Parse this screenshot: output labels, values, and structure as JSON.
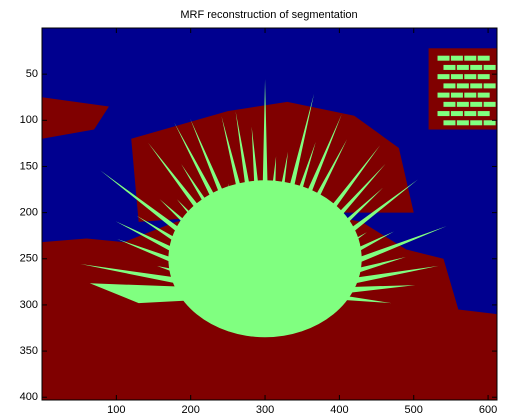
{
  "chart_data": {
    "type": "image",
    "title": "MRF reconstruction of segmentation",
    "xlim": [
      0,
      612
    ],
    "ylim": [
      0,
      403
    ],
    "y_reversed": true,
    "xticks": [
      100,
      200,
      300,
      400,
      500,
      600
    ],
    "yticks": [
      50,
      100,
      150,
      200,
      250,
      300,
      350,
      400
    ],
    "colormap": [
      "#00008f",
      "#800000",
      "#80ff80"
    ]
  }
}
